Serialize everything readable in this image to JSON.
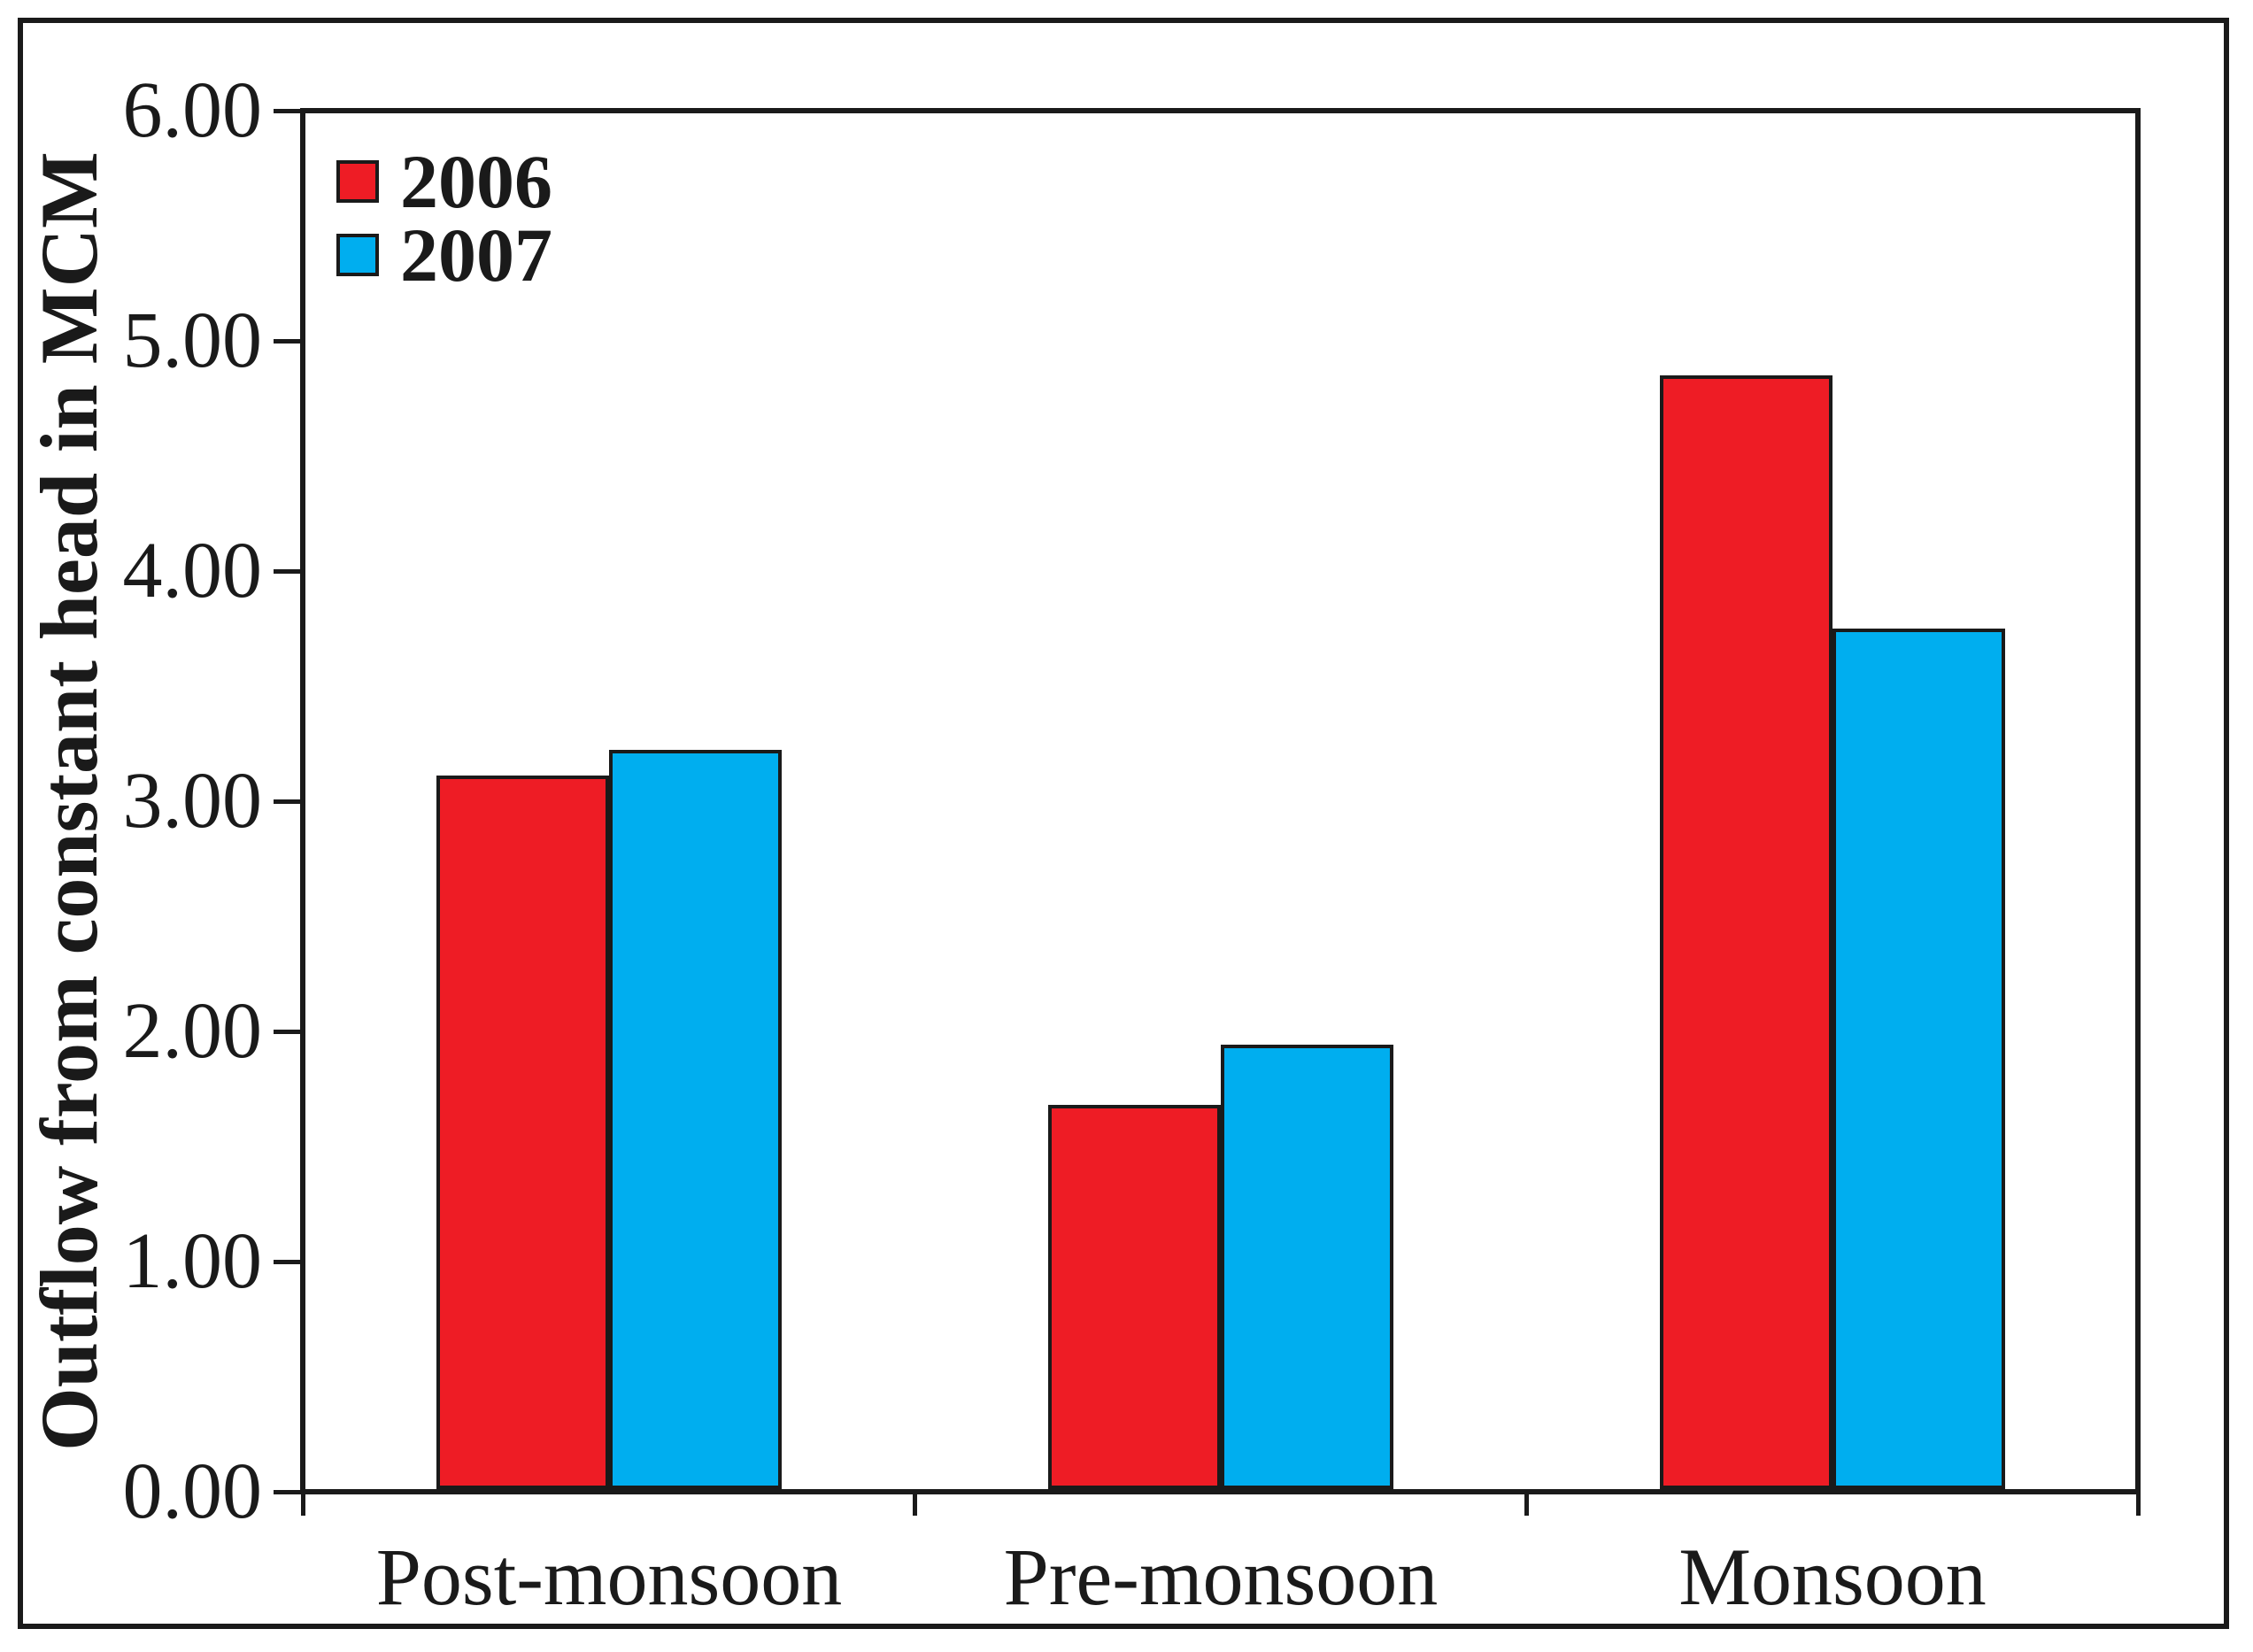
{
  "figure": {
    "background": "#ffffff",
    "border_color": "#1a1a1a"
  },
  "chart_data": {
    "type": "bar",
    "title": "",
    "xlabel": "",
    "ylabel": "Outflow from constant head in MCM",
    "categories": [
      "Post-monsoon",
      "Pre-monsoon",
      "Monsoon"
    ],
    "series": [
      {
        "name": "2006",
        "color": "#ee1c25",
        "values": [
          3.1,
          1.67,
          4.84
        ]
      },
      {
        "name": "2007",
        "color": "#00aeef",
        "values": [
          3.21,
          1.93,
          3.74
        ]
      }
    ],
    "ylim": [
      0,
      6
    ],
    "ytick_step": 1,
    "ytick_labels": [
      "0.00",
      "1.00",
      "2.00",
      "3.00",
      "4.00",
      "5.00",
      "6.00"
    ],
    "grid": false,
    "legend_position": "top-left"
  }
}
